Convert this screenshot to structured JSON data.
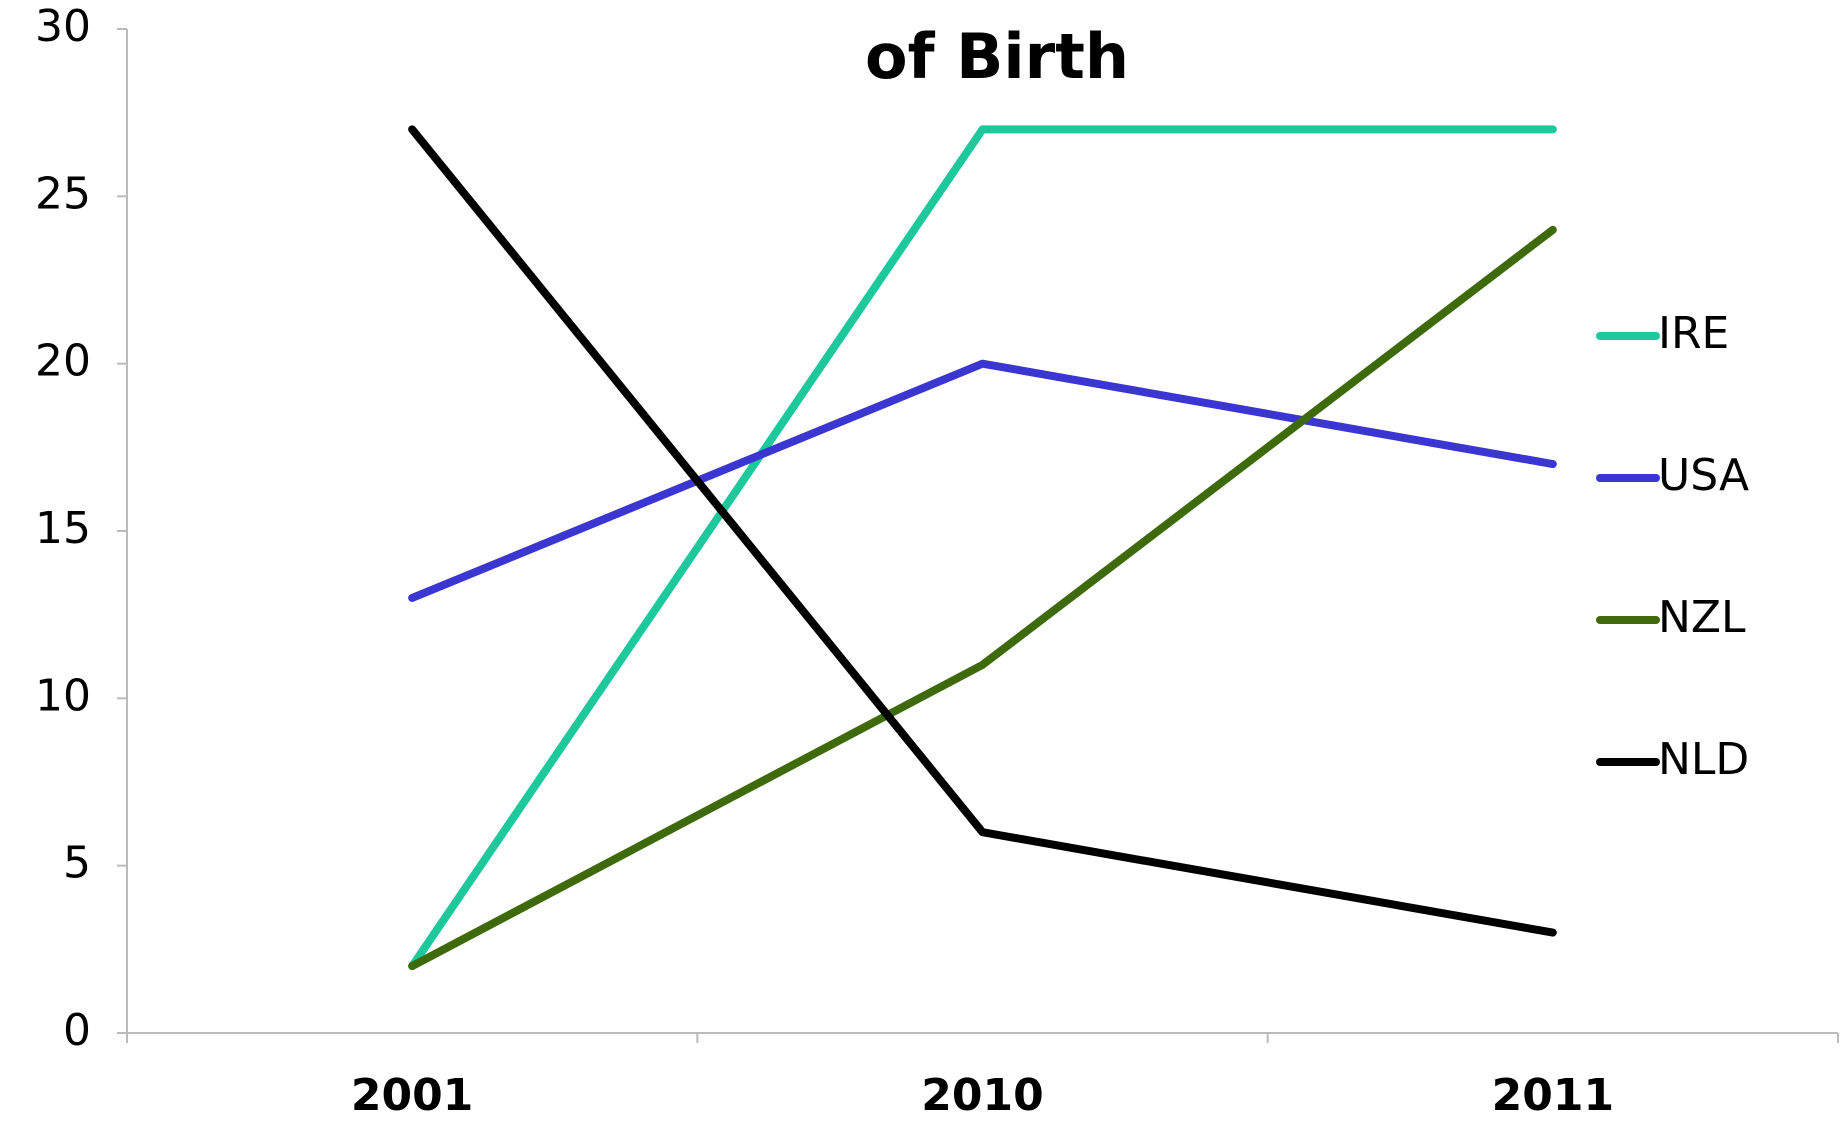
{
  "chart_data": {
    "type": "line",
    "title": "of Birth",
    "categories": [
      "2001",
      "2010",
      "2011"
    ],
    "series": [
      {
        "name": "IRE",
        "color": "#1dc99c",
        "values": [
          2,
          27,
          27
        ]
      },
      {
        "name": "USA",
        "color": "#3b36d1",
        "values": [
          13,
          20,
          17
        ]
      },
      {
        "name": "NZL",
        "color": "#3e6a0c",
        "values": [
          2,
          11,
          24
        ]
      },
      {
        "name": "NLD",
        "color": "#000000",
        "values": [
          27,
          6,
          3
        ]
      }
    ],
    "ylim": [
      0,
      30
    ],
    "yticks": [
      0,
      5,
      10,
      15,
      20,
      25,
      30
    ],
    "grid": false,
    "legend": "right"
  }
}
